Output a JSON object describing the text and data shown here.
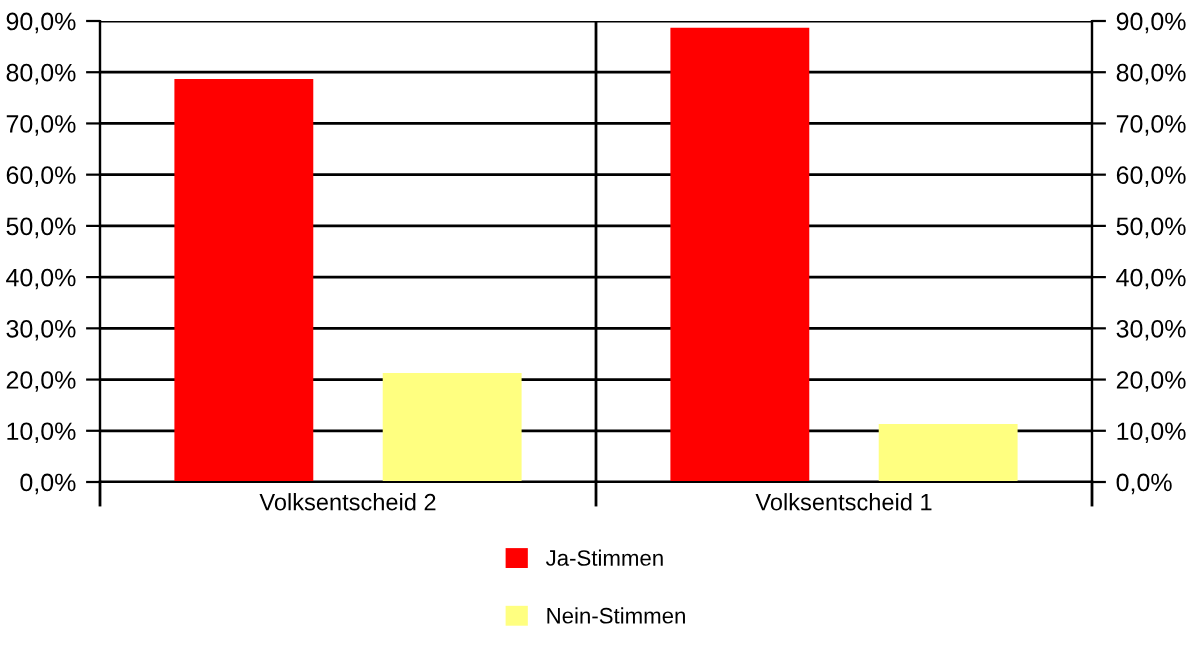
{
  "chart_data": {
    "type": "bar",
    "categories": [
      "Volksentscheid 2",
      "Volksentscheid 1"
    ],
    "series": [
      {
        "name": "Ja-Stimmen",
        "color": "#ff0000",
        "values": [
          78.7,
          88.7
        ]
      },
      {
        "name": "Nein-Stimmen",
        "color": "#ffff80",
        "values": [
          21.3,
          11.3
        ]
      }
    ],
    "ylim": [
      0,
      90
    ],
    "yticks": [
      {
        "value": 0,
        "label": "0,0%"
      },
      {
        "value": 10,
        "label": "10,0%"
      },
      {
        "value": 20,
        "label": "20,0%"
      },
      {
        "value": 30,
        "label": "30,0%"
      },
      {
        "value": 40,
        "label": "40,0%"
      },
      {
        "value": 50,
        "label": "50,0%"
      },
      {
        "value": 60,
        "label": "60,0%"
      },
      {
        "value": 70,
        "label": "70,0%"
      },
      {
        "value": 80,
        "label": "80,0%"
      },
      {
        "value": 90,
        "label": "90,0%"
      }
    ],
    "y2lim": [
      0,
      90
    ],
    "y2ticks": [
      {
        "value": 0,
        "label": "0,0%"
      },
      {
        "value": 10,
        "label": "10,0%"
      },
      {
        "value": 20,
        "label": "20,0%"
      },
      {
        "value": 30,
        "label": "30,0%"
      },
      {
        "value": 40,
        "label": "40,0%"
      },
      {
        "value": 50,
        "label": "50,0%"
      },
      {
        "value": 60,
        "label": "60,0%"
      },
      {
        "value": 70,
        "label": "70,0%"
      },
      {
        "value": 80,
        "label": "80,0%"
      },
      {
        "value": 90,
        "label": "90,0%"
      }
    ],
    "grid": true,
    "legend": "bottom"
  }
}
